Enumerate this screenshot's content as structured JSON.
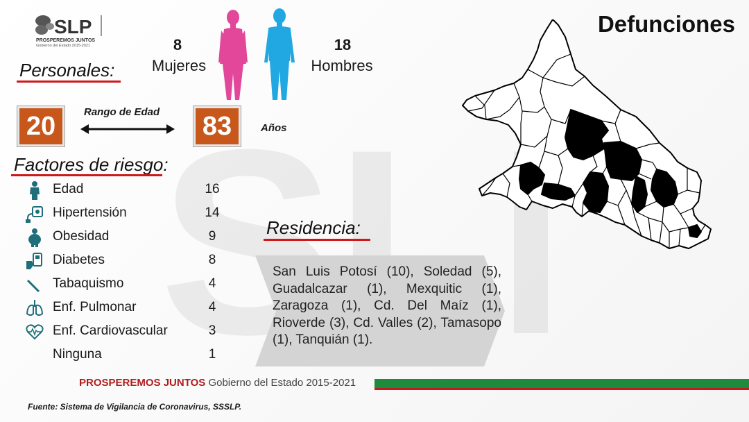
{
  "header": {
    "title": "Defunciones"
  },
  "logo": {
    "name": "SLP",
    "tagline": "PROSPEREMOS JUNTOS",
    "subline": "Gobierno del Estado 2015-2021"
  },
  "personales": {
    "heading": "Personales:",
    "women": {
      "count": "8",
      "label": "Mujeres"
    },
    "men": {
      "count": "18",
      "label": "Hombres"
    },
    "colors": {
      "women": "#e2479a",
      "men": "#21a8e2"
    }
  },
  "age": {
    "title": "Rango de Edad",
    "min": "20",
    "max": "83",
    "unit": "Años",
    "box_color": "#c8571c"
  },
  "risk": {
    "heading": "Factores de riesgo:",
    "items": [
      {
        "icon": "person-icon",
        "label": "Edad",
        "count": "16"
      },
      {
        "icon": "blood-pressure-icon",
        "label": "Hipertensión",
        "count": "14"
      },
      {
        "icon": "obesity-icon",
        "label": "Obesidad",
        "count": "9"
      },
      {
        "icon": "glucometer-icon",
        "label": "Diabetes",
        "count": "8"
      },
      {
        "icon": "cigarette-icon",
        "label": "Tabaquismo",
        "count": "4"
      },
      {
        "icon": "lungs-icon",
        "label": "Enf. Pulmonar",
        "count": "4"
      },
      {
        "icon": "heart-pulse-icon",
        "label": "Enf. Cardiovascular",
        "count": "3"
      },
      {
        "icon": "",
        "label": "Ninguna",
        "count": "1"
      }
    ]
  },
  "residencia": {
    "heading": "Residencia:",
    "text": "San Luis Potosí (10), Soledad (5), Guadalcazar (1), Mexquitic (1), Zaragoza (1), Cd. Del Maíz (1), Rioverde (3), Cd. Valles (2), Tamasopo (1), Tanquián (1)."
  },
  "footer": {
    "brand_bold": "PROSPEREMOS JUNTOS",
    "brand_rest": "Gobierno del Estado 2015-2021",
    "source": "Fuente: Sistema de Vigilancia de Coronavirus, SSSLP."
  }
}
